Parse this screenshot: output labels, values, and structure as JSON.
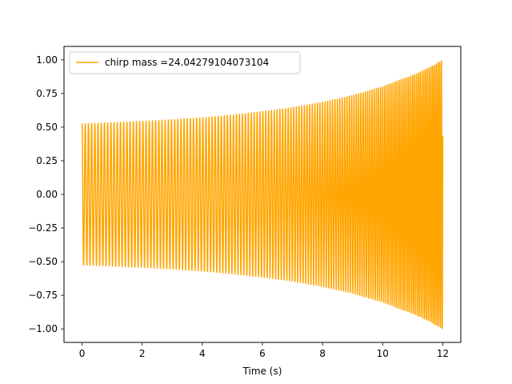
{
  "chart_data": {
    "type": "line",
    "title": "",
    "xlabel": "Time (s)",
    "ylabel": "",
    "xlim": [
      -0.6,
      12.6
    ],
    "ylim": [
      -1.1,
      1.1
    ],
    "xticks": [
      0,
      2,
      4,
      6,
      8,
      10,
      12
    ],
    "xtick_labels": [
      "0",
      "2",
      "4",
      "6",
      "8",
      "10",
      "12"
    ],
    "yticks": [
      -1.0,
      -0.75,
      -0.5,
      -0.25,
      0.0,
      0.25,
      0.5,
      0.75,
      1.0
    ],
    "ytick_labels": [
      "−1.00",
      "−0.75",
      "−0.50",
      "−0.25",
      "0.00",
      "0.25",
      "0.50",
      "0.75",
      "1.00"
    ],
    "grid": false,
    "legend_position": "top-left",
    "series": [
      {
        "name": "chirp mass =24.04279104073104",
        "color": "#ffa500",
        "time_range": [
          0,
          12
        ],
        "envelope": {
          "t": [
            0,
            1,
            2,
            3,
            4,
            5,
            6,
            7,
            8,
            9,
            10,
            10.5,
            11,
            11.5,
            12
          ],
          "amplitude": [
            0.525,
            0.533,
            0.543,
            0.555,
            0.57,
            0.59,
            0.615,
            0.645,
            0.685,
            0.735,
            0.8,
            0.845,
            0.885,
            0.935,
            1.0
          ]
        },
        "approx_cycles": 150
      }
    ]
  }
}
